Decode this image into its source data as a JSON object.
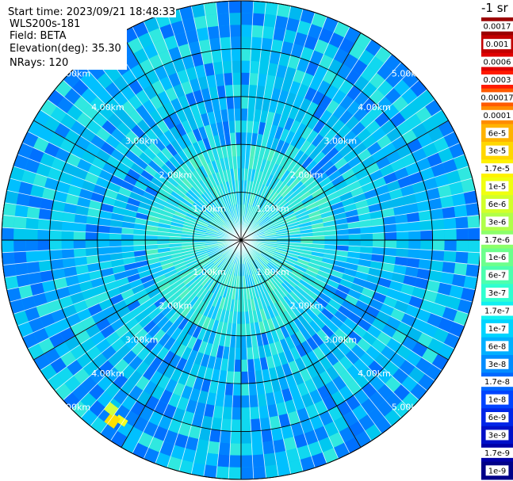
{
  "info": {
    "start_time": "Start time: 2023/09/21 18:48:33",
    "site": "WLS200s-181",
    "field": "Field: BETA",
    "elevation": "Elevation(deg): 35.30",
    "nrays": "NRays: 120"
  },
  "colorbar": {
    "unit_title": "-1 sr",
    "labels": [
      "0.0017",
      "0.001",
      "0.0006",
      "0.0003",
      "0.00017",
      "0.0001",
      "6e-5",
      "3e-5",
      "1.7e-5",
      "1e-5",
      "6e-6",
      "3e-6",
      "1.7e-6",
      "1e-6",
      "6e-7",
      "3e-7",
      "1.7e-7",
      "1e-7",
      "6e-8",
      "3e-8",
      "1.7e-8",
      "1e-8",
      "6e-9",
      "3e-9",
      "1.7e-9",
      "1e-9"
    ],
    "colors": [
      "#9b0000",
      "#c20000",
      "#e00000",
      "#ff1a00",
      "#ff5a00",
      "#ff8c00",
      "#ffb300",
      "#ffd700",
      "#fff200",
      "#f0ff10",
      "#d2ff2a",
      "#b0ff4a",
      "#8cff6a",
      "#6cff8c",
      "#4cffae",
      "#30ffd0",
      "#10f0f0",
      "#00d4ff",
      "#00b0ff",
      "#008cff",
      "#0068ff",
      "#0044ff",
      "#0026e8",
      "#0010c8",
      "#0000a8",
      "#000088"
    ]
  },
  "chart_data": {
    "type": "heatmap",
    "plot_kind": "polar PPI lidar scan",
    "field": "BETA",
    "unit": "-1 sr",
    "colorbar_ticks": [
      0.0017,
      0.001,
      0.0006,
      0.0003,
      0.00017,
      0.0001,
      6e-05,
      3e-05,
      1.7e-05,
      1e-05,
      6e-06,
      3e-06,
      1.7e-06,
      1e-06,
      6e-07,
      3e-07,
      1.7e-07,
      1e-07,
      6e-08,
      3e-08,
      1.7e-08,
      1e-08,
      6e-09,
      3e-09,
      1.7e-09,
      1e-09
    ],
    "range_rings_km": [
      1.0,
      2.0,
      3.0,
      4.0,
      5.0
    ],
    "range_ring_labels": [
      "1.00km",
      "2.00km",
      "3.00km",
      "4.00km",
      "5.00km"
    ],
    "max_range_km": 5.0,
    "nrays": 120,
    "spoke_angles_deg": [
      0,
      30,
      60,
      90,
      120,
      150,
      180,
      210,
      240,
      270,
      300,
      330
    ]
  }
}
